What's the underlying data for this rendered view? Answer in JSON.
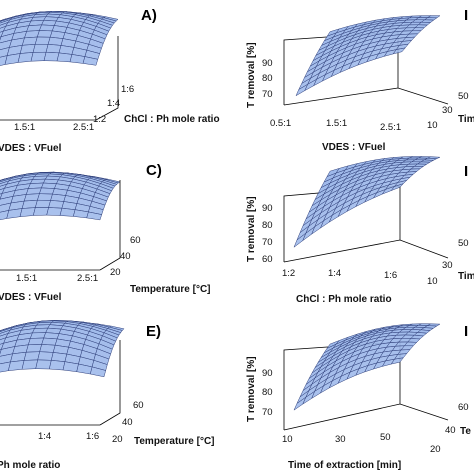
{
  "figure": {
    "panels": [
      {
        "id": "A",
        "letter": "A)",
        "clip": true
      },
      {
        "id": "B",
        "letter": "I",
        "clip": true
      },
      {
        "id": "C",
        "letter": "C)",
        "clip": true
      },
      {
        "id": "D",
        "letter": "I",
        "clip": true
      },
      {
        "id": "E",
        "letter": "E)",
        "clip": true
      },
      {
        "id": "F",
        "letter": "I",
        "clip": true
      }
    ]
  },
  "chart_data": [
    {
      "type": "surface",
      "panel": "A)",
      "x_label": "VDES : VFuel",
      "x_ticks": [
        "1.5:1",
        "2.5:1"
      ],
      "y_label": "ChCl : Ph mole ratio",
      "y_ticks": [
        "1:2",
        "1:4",
        "1:6"
      ],
      "z_label": "",
      "z_ticks": [],
      "surface_color": "#9db8ea",
      "shape": "dome"
    },
    {
      "type": "surface",
      "panel": "",
      "x_label": "VDES : VFuel",
      "x_ticks": [
        "0.5:1",
        "1.5:1",
        "2.5:1"
      ],
      "y_label": "Tim",
      "y_ticks": [
        "10",
        "30",
        "50"
      ],
      "z_label": "T removal [%]",
      "z_ticks": [
        "70",
        "80",
        "90"
      ],
      "zlim": [
        63,
        94
      ],
      "surface_color": "#9db8ea",
      "shape": "rising-dome"
    },
    {
      "type": "surface",
      "panel": "C)",
      "x_label": "VDES : VFuel",
      "x_ticks": [
        "1.5:1",
        "2.5:1"
      ],
      "y_label": "Temperature [°C]",
      "y_ticks": [
        "20",
        "40",
        "60"
      ],
      "z_label": "",
      "z_ticks": [],
      "surface_color": "#9db8ea",
      "shape": "dome"
    },
    {
      "type": "surface",
      "panel": "",
      "x_label": "ChCl : Ph mole ratio",
      "x_ticks": [
        "1:2",
        "1:4",
        "1:6"
      ],
      "y_label": "Tim",
      "y_ticks": [
        "10",
        "30",
        "50"
      ],
      "z_label": "T removal [%]",
      "z_ticks": [
        "60",
        "70",
        "80",
        "90"
      ],
      "zlim": [
        58,
        94
      ],
      "surface_color": "#9db8ea",
      "shape": "plateau"
    },
    {
      "type": "surface",
      "panel": "E)",
      "x_label": "Ph mole ratio",
      "x_ticks": [
        "1:4",
        "1:6"
      ],
      "y_label": "Temperature [°C]",
      "y_ticks": [
        "20",
        "40",
        "60"
      ],
      "z_label": "",
      "z_ticks": [],
      "surface_color": "#9db8ea",
      "shape": "dome"
    },
    {
      "type": "surface",
      "panel": "",
      "x_label": "Time of extraction [min]",
      "x_ticks": [
        "10",
        "30",
        "50"
      ],
      "y_label": "Te",
      "y_ticks": [
        "20",
        "40",
        "60"
      ],
      "z_label": "T removal [%]",
      "z_ticks": [
        "70",
        "80",
        "90"
      ],
      "zlim": [
        63,
        94
      ],
      "surface_color": "#9db8ea",
      "shape": "dome"
    }
  ]
}
